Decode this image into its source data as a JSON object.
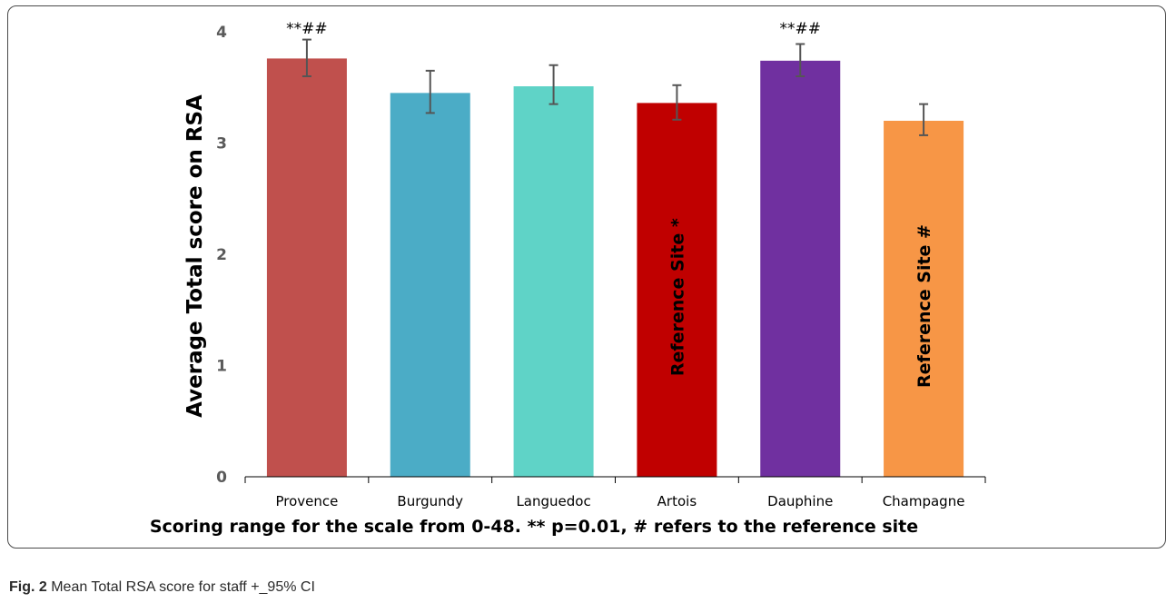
{
  "chart_data": {
    "type": "bar",
    "ylabel": "Average Total score on RSA",
    "xlabel": "",
    "ylim": [
      0,
      4
    ],
    "yticks": [
      0,
      1,
      2,
      3,
      4
    ],
    "grid": false,
    "categories": [
      "Provence",
      "Burgundy",
      "Languedoc",
      "Artois",
      "Dauphine",
      "Champagne"
    ],
    "values": [
      3.76,
      3.45,
      3.51,
      3.36,
      3.74,
      3.2
    ],
    "error_low": [
      3.6,
      3.27,
      3.35,
      3.21,
      3.6,
      3.07
    ],
    "error_high": [
      3.93,
      3.65,
      3.7,
      3.52,
      3.89,
      3.35
    ],
    "colors": [
      "#c0504d",
      "#4bacc6",
      "#5fd3c7",
      "#c00000",
      "#7030a0",
      "#f79646"
    ],
    "annotations": [
      "**##",
      "",
      "",
      "",
      "**##",
      ""
    ],
    "bar_labels": [
      "",
      "",
      "",
      "Reference Site *",
      "",
      "Reference Site #"
    ],
    "note": "Scoring range for the scale from 0-48. ** p=0.01, # refers to the reference site"
  },
  "caption": {
    "label": "Fig. 2",
    "text": " Mean Total RSA score for staff +_95% CI"
  }
}
